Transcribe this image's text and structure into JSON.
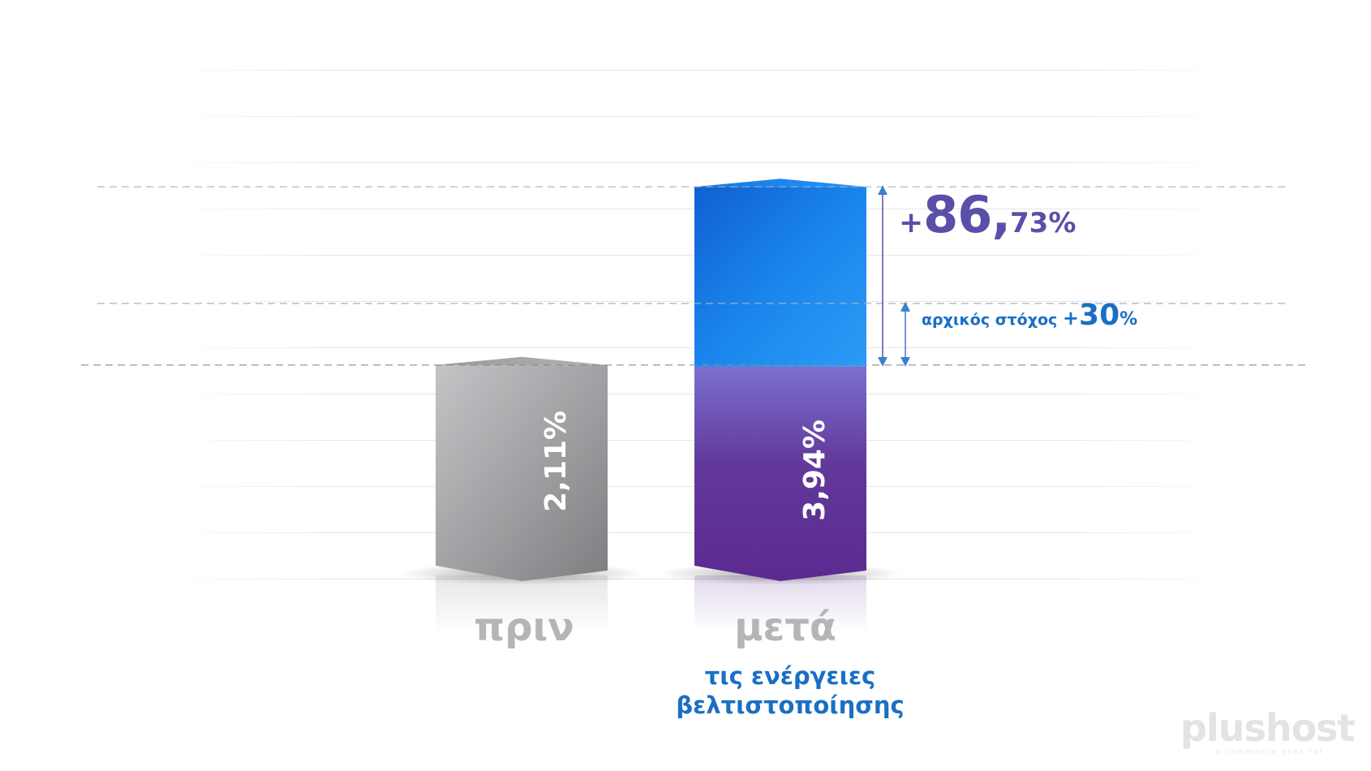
{
  "chart_data": {
    "type": "bar",
    "categories": [
      "πριν",
      "μετά"
    ],
    "values": [
      2.11,
      3.94
    ],
    "value_labels": [
      "2,11%",
      "3,94%"
    ],
    "subcaption": [
      "τις ενέργειες",
      "βελτιστοποίησης"
    ],
    "ylim": [
      0,
      4
    ],
    "grid": true,
    "annotations": {
      "increase": {
        "plus": "+",
        "big": "86,",
        "small": "73%"
      },
      "target": {
        "text": "αρχικός στόχος ",
        "plus": "+",
        "num": "30",
        "pct": "%",
        "value": 2.743
      }
    }
  },
  "colors": {
    "before_bar": "#9a9a9d",
    "after_top": "#1a8af0",
    "after_bottom": "#5a2b8c",
    "annotation_purple": "#5a4fa8",
    "annotation_blue": "#1a6fc4"
  },
  "watermark": {
    "text": "plushost",
    "tagline": "e-commerce goes far"
  }
}
